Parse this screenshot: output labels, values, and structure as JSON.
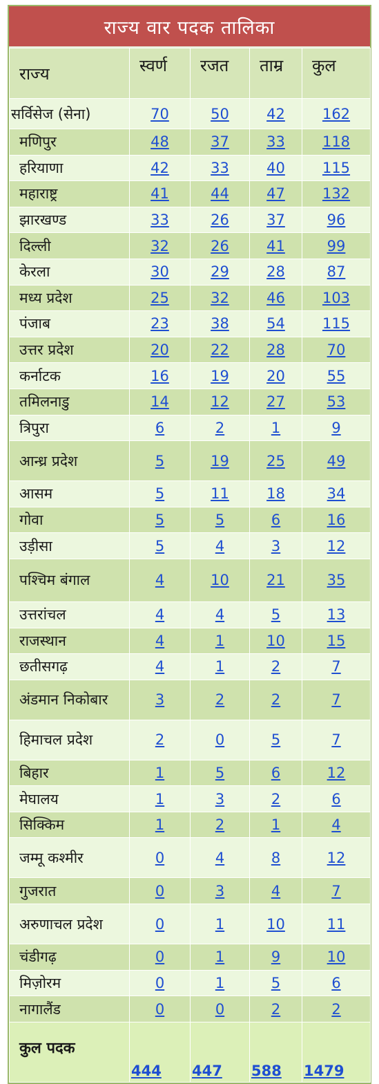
{
  "title": "राज्य वार पदक तालिका",
  "headers": {
    "state": "राज्य",
    "gold": "स्वर्ण",
    "silver": "रजत",
    "bronze": "ताम्र",
    "total": "कुल"
  },
  "rows": [
    {
      "state": "सर्विसेज (सेना)",
      "gold": "70",
      "silver": "50",
      "bronze": "42",
      "total": "162"
    },
    {
      "state": "मणिपुर",
      "gold": "48",
      "silver": "37",
      "bronze": "33",
      "total": "118"
    },
    {
      "state": "हरियाणा",
      "gold": "42",
      "silver": "33",
      "bronze": "40",
      "total": "115"
    },
    {
      "state": "महाराष्ट्र",
      "gold": "41",
      "silver": "44",
      "bronze": "47",
      "total": "132"
    },
    {
      "state": "झारखण्ड",
      "gold": "33",
      "silver": "26",
      "bronze": "37",
      "total": "96"
    },
    {
      "state": "दिल्ली",
      "gold": "32",
      "silver": "26",
      "bronze": "41",
      "total": "99"
    },
    {
      "state": "केरला",
      "gold": "30",
      "silver": "29",
      "bronze": "28",
      "total": "87"
    },
    {
      "state": "मध्य प्रदेश",
      "gold": "25",
      "silver": "32",
      "bronze": "46",
      "total": "103"
    },
    {
      "state": "पंजाब",
      "gold": "23",
      "silver": "38",
      "bronze": "54",
      "total": "115"
    },
    {
      "state": "उत्तर प्रदेश",
      "gold": "20",
      "silver": "22",
      "bronze": "28",
      "total": "70"
    },
    {
      "state": "कर्नाटक",
      "gold": "16",
      "silver": "19",
      "bronze": "20",
      "total": "55"
    },
    {
      "state": "तमिलनाडु",
      "gold": "14",
      "silver": "12",
      "bronze": "27",
      "total": "53"
    },
    {
      "state": "त्रिपुरा",
      "gold": "6",
      "silver": "2",
      "bronze": "1",
      "total": "9"
    },
    {
      "state": "आन्ध्र प्रदेश",
      "gold": "5",
      "silver": "19",
      "bronze": "25",
      "total": "49"
    },
    {
      "state": "आसम",
      "gold": "5",
      "silver": "11",
      "bronze": "18",
      "total": "34"
    },
    {
      "state": "गोवा",
      "gold": "5",
      "silver": "5",
      "bronze": "6",
      "total": "16"
    },
    {
      "state": "उड़ीसा",
      "gold": "5",
      "silver": "4",
      "bronze": "3",
      "total": "12"
    },
    {
      "state": "पश्चिम बंगाल",
      "gold": "4",
      "silver": "10",
      "bronze": "21",
      "total": "35"
    },
    {
      "state": "उत्तरांचल",
      "gold": "4",
      "silver": "4",
      "bronze": "5",
      "total": "13"
    },
    {
      "state": "राजस्थान",
      "gold": "4",
      "silver": "1",
      "bronze": "10",
      "total": "15"
    },
    {
      "state": "छतीसगढ़",
      "gold": "4",
      "silver": "1",
      "bronze": "2",
      "total": "7"
    },
    {
      "state": "अंडमान निकोबार",
      "gold": "3",
      "silver": "2",
      "bronze": "2",
      "total": "7"
    },
    {
      "state": "हिमाचल प्रदेश",
      "gold": "2",
      "silver": "0",
      "bronze": "5",
      "total": "7"
    },
    {
      "state": "बिहार",
      "gold": "1",
      "silver": "5",
      "bronze": "6",
      "total": "12"
    },
    {
      "state": "मेघालय",
      "gold": "1",
      "silver": "3",
      "bronze": "2",
      "total": "6"
    },
    {
      "state": "सिक्किम",
      "gold": "1",
      "silver": "2",
      "bronze": "1",
      "total": "4"
    },
    {
      "state": "जम्मू कश्मीर",
      "gold": "0",
      "silver": "4",
      "bronze": "8",
      "total": "12"
    },
    {
      "state": "गुजरात",
      "gold": "0",
      "silver": "3",
      "bronze": "4",
      "total": "7"
    },
    {
      "state": "अरुणाचल प्रदेश",
      "gold": "0",
      "silver": "1",
      "bronze": "10",
      "total": "11"
    },
    {
      "state": "चंडीगढ़",
      "gold": "0",
      "silver": "1",
      "bronze": "9",
      "total": "10"
    },
    {
      "state": "मिज़ोरम",
      "gold": "0",
      "silver": "1",
      "bronze": "5",
      "total": "6"
    },
    {
      "state": "नागालैंड",
      "gold": "0",
      "silver": "0",
      "bronze": "2",
      "total": "2"
    }
  ],
  "footer": {
    "label": "कुल पदक",
    "gold": "444",
    "silver": "447",
    "bronze": "588",
    "total": "1479"
  },
  "colors": {
    "title_bg": "#c0504d",
    "row_light": "#ecf7de",
    "row_dark": "#cfe2ad",
    "link": "#1f4fd1"
  }
}
